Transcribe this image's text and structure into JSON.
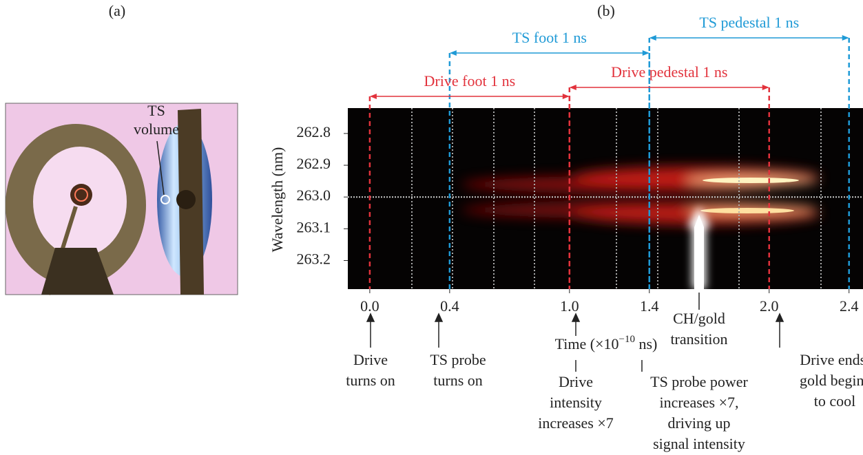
{
  "panel_a": {
    "label": "(a)",
    "annotation": [
      "TS",
      "volume"
    ]
  },
  "panel_b": {
    "label": "(b)",
    "y_label": "Wavelength (nm)",
    "x_label": [
      "Time (×10",
      "−10",
      " ns)"
    ],
    "xlim": [
      -0.11,
      2.47
    ],
    "xticks": [
      {
        "value": 0,
        "label": "0.0"
      },
      0.4,
      {
        "value": 1,
        "label": "1.0"
      },
      1.4,
      {
        "value": 2,
        "label": "2.0"
      },
      2.4
    ],
    "ylim": [
      262.72,
      263.29
    ],
    "yticks": [
      262.8,
      262.9,
      {
        "value": 263,
        "label": "263.0"
      },
      263.1,
      263.2
    ],
    "spans": [
      {
        "label": "TS foot 1 ns",
        "color": "#1f9ad6"
      },
      {
        "label": "TS pedestal 1 ns",
        "color": "#1f9ad6"
      },
      {
        "label": "Drive foot 1 ns",
        "color": "#e2323c"
      },
      {
        "label": "Drive pedestal 1 ns",
        "color": "#e2323c"
      }
    ],
    "notes": [
      [
        "Drive",
        "turns on"
      ],
      [
        "TS probe",
        "turns on"
      ],
      [
        "Drive",
        "intensity",
        "increases ×7"
      ],
      [
        "TS probe power",
        "increases ×7,",
        "driving up",
        "signal intensity"
      ],
      [
        "CH/gold",
        "transition"
      ],
      [
        "Drive ends,",
        "gold begins",
        "to cool"
      ]
    ]
  }
}
